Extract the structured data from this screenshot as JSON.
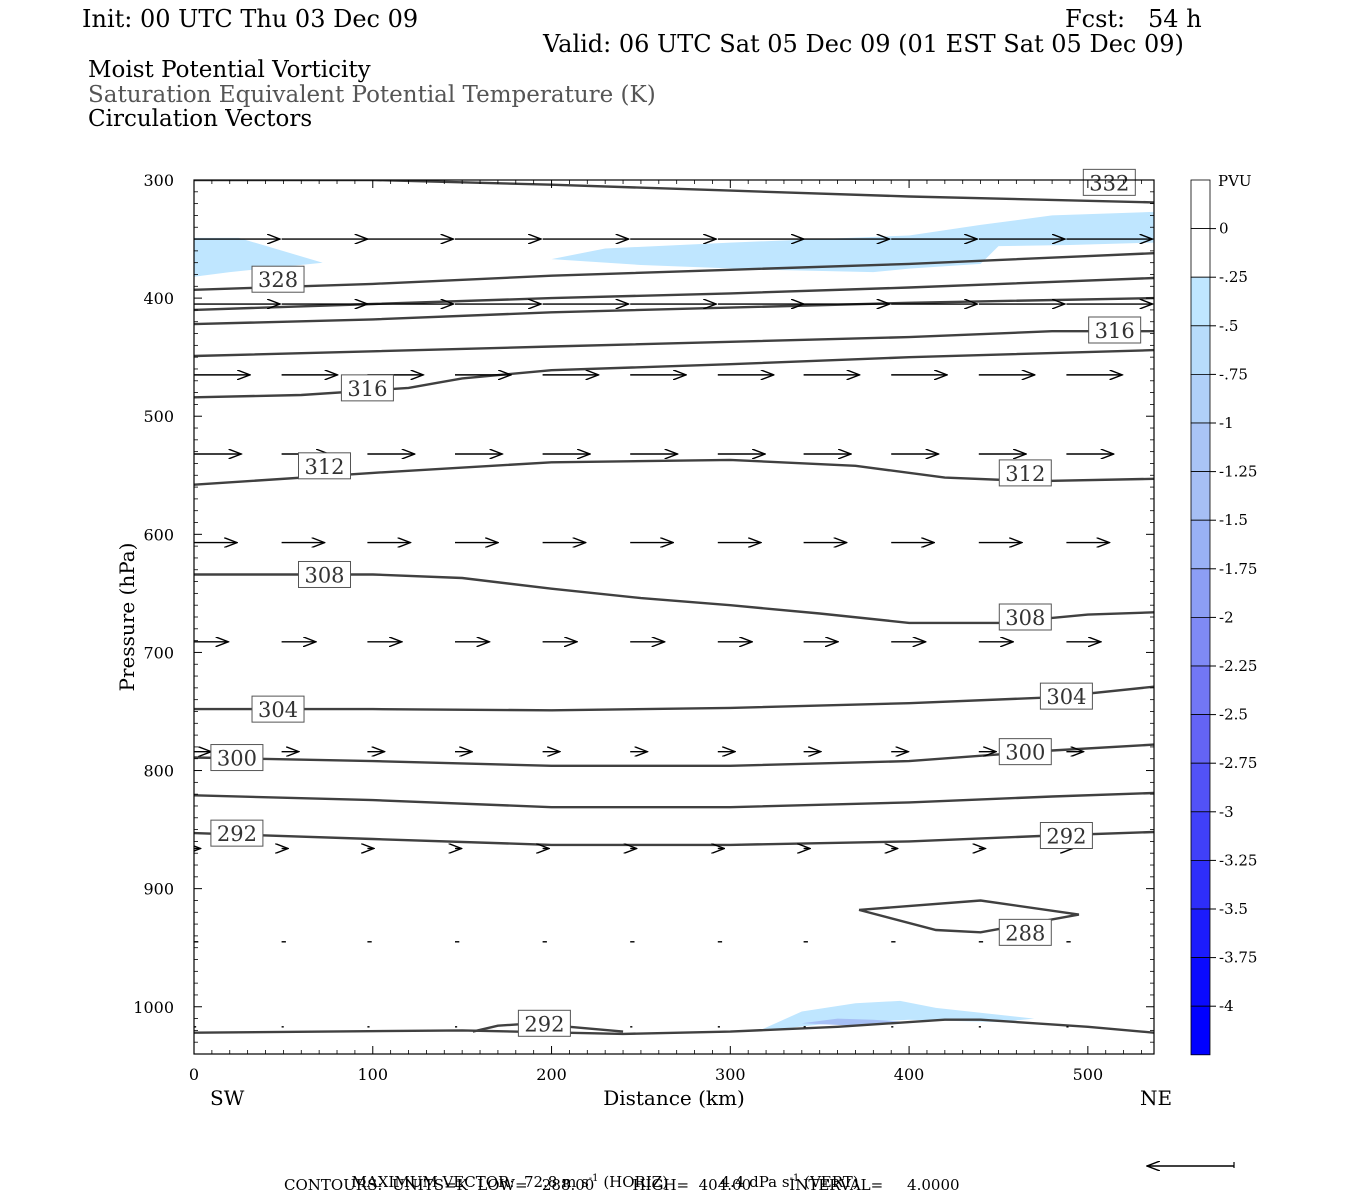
{
  "header": {
    "init": "Init: 00 UTC Thu 03 Dec 09",
    "fcst": "Fcst:   54 h",
    "valid": "Valid: 06 UTC Sat 05 Dec 09 (01 EST Sat 05 Dec 09)",
    "field1": "Moist Potential Vorticity",
    "field2": "Saturation Equivalent Potential Temperature (K)",
    "field3": "Circulation Vectors"
  },
  "footer": {
    "max_label": "MAXIMUM VECTOR:",
    "horiz_value": "72.8 m s",
    "horiz_exp": "-1",
    "horiz_tag": "(HORIZ)",
    "vert_value": "4.4 dPa s",
    "vert_exp": "-1",
    "vert_tag": "(VERT)",
    "contours_line": "CONTOURS:  UNITS=K  LOW=   288.00        HIGH=  404.00        INTERVAL=     4.0000"
  },
  "colors": {
    "contour": "#404040",
    "mpv_light": "#bfe6ff",
    "mpv_mid": "#a6bff5"
  },
  "chart_data": {
    "type": "cross-section",
    "xlabel": "Distance (km)",
    "ylabel": "Pressure (hPa)",
    "x_left_label": "SW",
    "x_right_label": "NE",
    "xlim": [
      0,
      537
    ],
    "ylim": [
      1040,
      300
    ],
    "xticks": [
      0,
      100,
      200,
      300,
      400,
      500
    ],
    "yticks": [
      300,
      400,
      500,
      600,
      700,
      800,
      900,
      1000
    ],
    "colorbar": {
      "title": "PVU",
      "labels": [
        "0",
        "-.25",
        "-.5",
        "-.75",
        "-1",
        "-1.25",
        "-1.5",
        "-1.75",
        "-2",
        "-2.25",
        "-2.5",
        "-2.75",
        "-3",
        "-3.25",
        "-3.5",
        "-3.75",
        "-4"
      ],
      "colors": [
        "#ffffff",
        "#ffffff",
        "#bfe6ff",
        "#b7dcfb",
        "#b0d0f8",
        "#a9c4f6",
        "#a6bff5",
        "#99b1f5",
        "#8c9ef5",
        "#7f8af5",
        "#7277f5",
        "#6464f5",
        "#5252f7",
        "#4040f8",
        "#2e2efa",
        "#1c1cfc",
        "#0a0afe",
        "#0000ff"
      ]
    },
    "contours": [
      {
        "value": "332",
        "points": [
          [
            0,
            300
          ],
          [
            100,
            300
          ],
          [
            200,
            304
          ],
          [
            300,
            309
          ],
          [
            400,
            314
          ],
          [
            537,
            319
          ]
        ]
      },
      {
        "value": "328",
        "points": [
          [
            0,
            393
          ],
          [
            100,
            388
          ],
          [
            200,
            381
          ],
          [
            300,
            376
          ],
          [
            400,
            371
          ],
          [
            537,
            362
          ]
        ]
      },
      {
        "value": "",
        "points": [
          [
            0,
            410
          ],
          [
            100,
            405
          ],
          [
            200,
            400
          ],
          [
            300,
            396
          ],
          [
            400,
            391
          ],
          [
            537,
            383
          ]
        ]
      },
      {
        "value": "",
        "points": [
          [
            0,
            422
          ],
          [
            100,
            418
          ],
          [
            200,
            412
          ],
          [
            300,
            408
          ],
          [
            400,
            404
          ],
          [
            537,
            400
          ]
        ]
      },
      {
        "value": "316",
        "points": [
          [
            0,
            449
          ],
          [
            100,
            445
          ],
          [
            200,
            441
          ],
          [
            300,
            437
          ],
          [
            400,
            433
          ],
          [
            480,
            428
          ],
          [
            537,
            428
          ]
        ]
      },
      {
        "value": "316",
        "points": [
          [
            0,
            484
          ],
          [
            60,
            482
          ],
          [
            120,
            476
          ],
          [
            150,
            468
          ],
          [
            200,
            461
          ],
          [
            300,
            456
          ],
          [
            400,
            450
          ],
          [
            537,
            444
          ]
        ]
      },
      {
        "value": "312",
        "points": [
          [
            0,
            558
          ],
          [
            100,
            548
          ],
          [
            200,
            539
          ],
          [
            300,
            537
          ],
          [
            370,
            542
          ],
          [
            420,
            552
          ],
          [
            470,
            555
          ],
          [
            537,
            553
          ]
        ]
      },
      {
        "value": "308",
        "points": [
          [
            0,
            634
          ],
          [
            100,
            634
          ],
          [
            150,
            637
          ],
          [
            200,
            646
          ],
          [
            250,
            654
          ],
          [
            300,
            660
          ],
          [
            350,
            667
          ],
          [
            400,
            675
          ],
          [
            450,
            675
          ],
          [
            500,
            668
          ],
          [
            537,
            666
          ]
        ]
      },
      {
        "value": "304",
        "points": [
          [
            0,
            748
          ],
          [
            100,
            748
          ],
          [
            200,
            749
          ],
          [
            300,
            747
          ],
          [
            400,
            743
          ],
          [
            480,
            738
          ],
          [
            537,
            729
          ]
        ]
      },
      {
        "value": "300",
        "points": [
          [
            0,
            789
          ],
          [
            100,
            792
          ],
          [
            200,
            796
          ],
          [
            300,
            796
          ],
          [
            400,
            792
          ],
          [
            480,
            783
          ],
          [
            537,
            778
          ]
        ]
      },
      {
        "value": "",
        "points": [
          [
            0,
            821
          ],
          [
            100,
            825
          ],
          [
            200,
            831
          ],
          [
            300,
            831
          ],
          [
            400,
            827
          ],
          [
            480,
            822
          ],
          [
            537,
            819
          ]
        ]
      },
      {
        "value": "292",
        "points": [
          [
            0,
            853
          ],
          [
            100,
            858
          ],
          [
            200,
            863
          ],
          [
            300,
            863
          ],
          [
            400,
            860
          ],
          [
            480,
            855
          ],
          [
            537,
            852
          ]
        ]
      },
      {
        "value": "288",
        "closed": true,
        "points": [
          [
            372,
            918
          ],
          [
            440,
            910
          ],
          [
            495,
            922
          ],
          [
            440,
            937
          ],
          [
            415,
            935
          ],
          [
            372,
            918
          ]
        ]
      },
      {
        "value": "292",
        "points": [
          [
            156,
            1021
          ],
          [
            170,
            1016
          ],
          [
            190,
            1014
          ],
          [
            210,
            1017
          ],
          [
            240,
            1021
          ]
        ]
      },
      {
        "value": "",
        "points": [
          [
            0,
            1022
          ],
          [
            150,
            1020
          ],
          [
            240,
            1023
          ],
          [
            300,
            1021
          ],
          [
            360,
            1017
          ],
          [
            420,
            1011
          ],
          [
            440,
            1011
          ],
          [
            500,
            1017
          ],
          [
            537,
            1022
          ]
        ]
      }
    ],
    "mpv_regions": [
      {
        "level": "-.25",
        "points": [
          [
            0,
            349
          ],
          [
            25,
            349
          ],
          [
            72,
            370
          ],
          [
            20,
            378
          ],
          [
            0,
            382
          ]
        ]
      },
      {
        "level": "-.25",
        "points": [
          [
            200,
            367
          ],
          [
            230,
            358
          ],
          [
            300,
            353
          ],
          [
            400,
            347
          ],
          [
            440,
            338
          ],
          [
            480,
            330
          ],
          [
            537,
            327
          ],
          [
            537,
            353
          ],
          [
            490,
            355
          ],
          [
            450,
            356
          ],
          [
            440,
            371
          ],
          [
            400,
            375
          ],
          [
            380,
            378
          ],
          [
            320,
            376
          ],
          [
            250,
            372
          ]
        ]
      },
      {
        "level": "-.25",
        "points": [
          [
            315,
            1021
          ],
          [
            340,
            1004
          ],
          [
            370,
            997
          ],
          [
            395,
            995
          ],
          [
            415,
            1001
          ],
          [
            470,
            1010
          ],
          [
            450,
            1013
          ],
          [
            400,
            1011
          ],
          [
            350,
            1015
          ]
        ]
      },
      {
        "level": "-.5",
        "points": [
          [
            340,
            1014
          ],
          [
            360,
            1010
          ],
          [
            380,
            1011
          ],
          [
            400,
            1013
          ],
          [
            370,
            1016
          ]
        ]
      }
    ],
    "vectors": [
      {
        "p": 350,
        "x0": [
          0,
          49,
          97,
          146,
          195,
          244,
          293,
          341,
          390,
          439,
          488
        ],
        "u": 40,
        "w": 0
      },
      {
        "p": 405,
        "x0": [
          0,
          49,
          97,
          146,
          195,
          244,
          293,
          341,
          390,
          439,
          488
        ],
        "u": 40,
        "w": 0
      },
      {
        "p": 465,
        "x0": [
          0,
          49,
          97,
          146,
          195,
          244,
          293,
          341,
          390,
          439,
          488
        ],
        "u": 26,
        "w": 0
      },
      {
        "p": 532,
        "x0": [
          0,
          49,
          97,
          146,
          195,
          244,
          293,
          341,
          390,
          439,
          488
        ],
        "u": 22,
        "w": 0
      },
      {
        "p": 607,
        "x0": [
          0,
          49,
          97,
          146,
          195,
          244,
          293,
          341,
          390,
          439,
          488
        ],
        "u": 20,
        "w": 0
      },
      {
        "p": 691,
        "x0": [
          0,
          49,
          97,
          146,
          195,
          244,
          293,
          341,
          390,
          439,
          488
        ],
        "u": 16,
        "w": 0
      },
      {
        "p": 784,
        "x0": [
          0,
          49,
          97,
          146,
          195,
          244,
          293,
          341,
          390,
          439,
          488
        ],
        "u": 8,
        "w": 0
      },
      {
        "p": 866,
        "x0": [
          0,
          49,
          97,
          146,
          195,
          244,
          293,
          341,
          390,
          439,
          488
        ],
        "u": 3,
        "w": 0
      },
      {
        "p": 945,
        "x0": [
          0,
          49,
          97,
          146,
          195,
          244,
          293,
          341,
          390,
          439,
          488
        ],
        "u": 2,
        "w": 0
      },
      {
        "p": 1017,
        "x0": [
          0,
          49,
          97,
          146,
          195,
          244,
          293,
          341,
          390,
          439,
          488
        ],
        "u": 1,
        "w": 0
      }
    ]
  }
}
